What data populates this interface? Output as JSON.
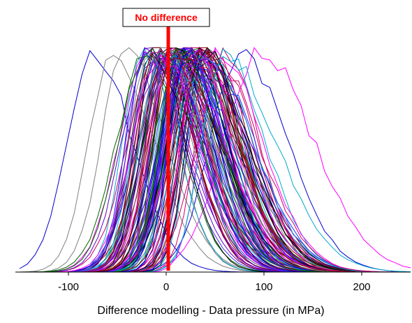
{
  "chart_data": {
    "type": "line",
    "title": "",
    "xlabel": "Difference modelling - Data pressure  (in MPa)",
    "ylabel": "",
    "xlim": [
      -150,
      250
    ],
    "ylim": [
      0,
      1.02
    ],
    "x_ticks": [
      -100,
      0,
      100,
      200
    ],
    "x_tick_labels": [
      "-100",
      "0",
      "100",
      "200"
    ],
    "show_y_axis": false,
    "grid": false,
    "legend": "none",
    "reference_line": {
      "x": 0,
      "color": "#ff0000",
      "label": "No difference"
    },
    "series_description": {
      "count": 120,
      "shape": "normalized frequency distributions, roughly bell-shaped",
      "peak_x_range": [
        -75,
        95
      ],
      "dominant_peak_x": 15,
      "colors": [
        "#0000cc",
        "#ff00ff",
        "#000000",
        "#006600",
        "#8b0000",
        "#7f7f7f",
        "#6600cc",
        "#00aacc",
        "#cc0066",
        "#3333ff"
      ]
    }
  }
}
